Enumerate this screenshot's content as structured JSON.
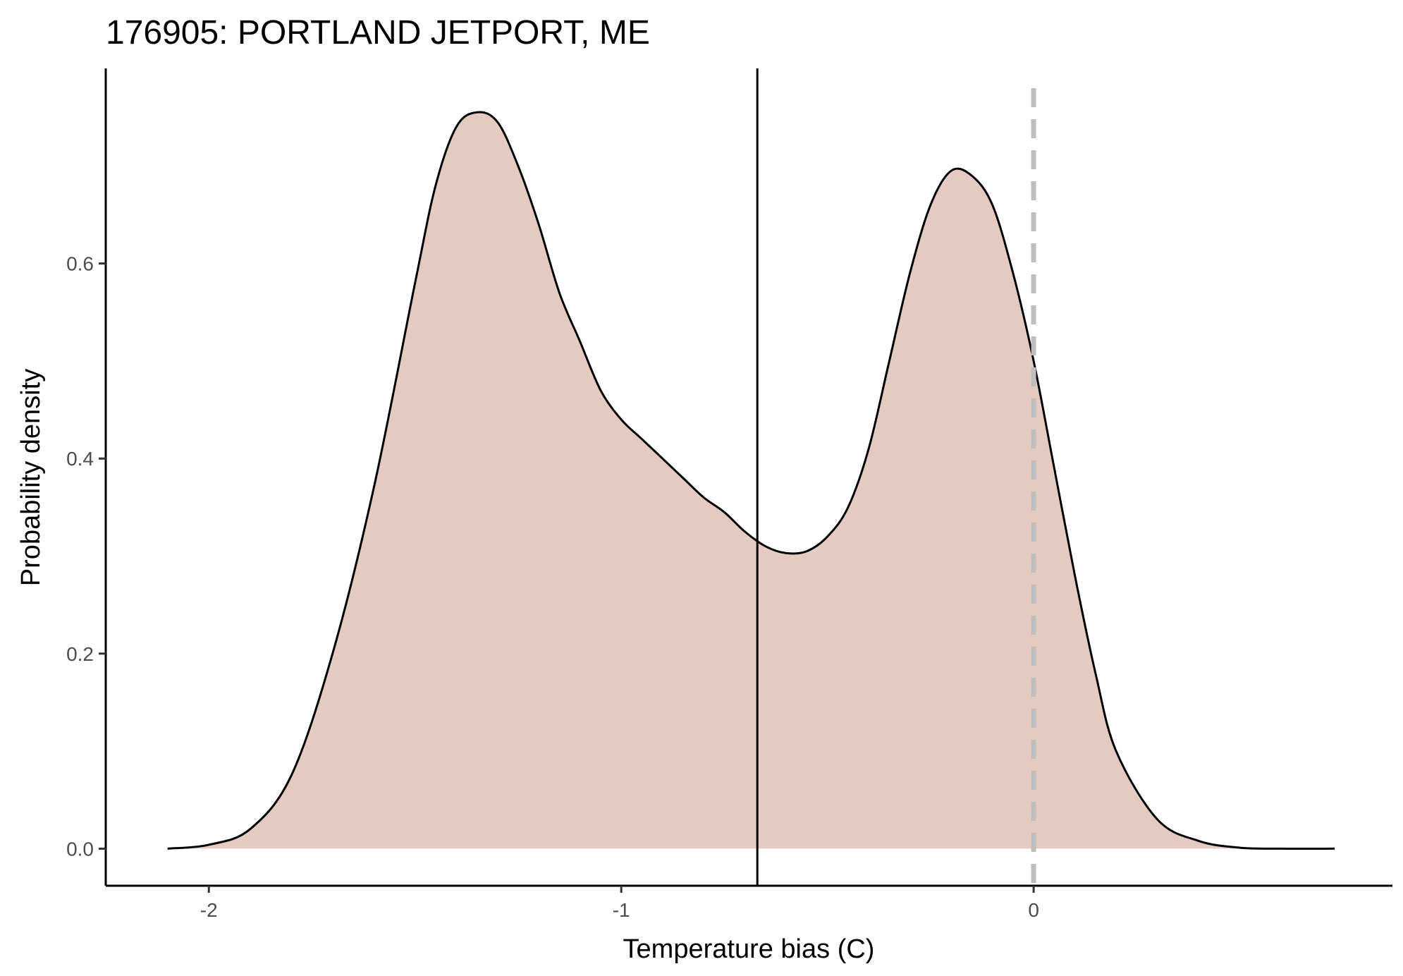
{
  "chart_data": {
    "type": "area",
    "title": "176905: PORTLAND JETPORT, ME",
    "xlabel": "Temperature bias (C)",
    "ylabel": "Probability density",
    "xlim": [
      -2.25,
      0.87
    ],
    "ylim": [
      -0.038,
      0.8
    ],
    "x_ticks": [
      -2,
      -1,
      0
    ],
    "x_tick_labels": [
      "-2",
      "-1",
      "0"
    ],
    "y_ticks": [
      0.0,
      0.2,
      0.4,
      0.6
    ],
    "y_tick_labels": [
      "0.0",
      "0.2",
      "0.4",
      "0.6"
    ],
    "grid": false,
    "legend": "none",
    "fill_color": "#e5cac2",
    "line_color": "#000000",
    "series": [
      {
        "x": [
          -2.1,
          -2.0,
          -1.9,
          -1.8,
          -1.7,
          -1.6,
          -1.5,
          -1.45,
          -1.4,
          -1.35,
          -1.3,
          -1.25,
          -1.2,
          -1.15,
          -1.1,
          -1.05,
          -1.0,
          -0.95,
          -0.9,
          -0.85,
          -0.8,
          -0.75,
          -0.7,
          -0.65,
          -0.6,
          -0.55,
          -0.5,
          -0.45,
          -0.4,
          -0.35,
          -0.3,
          -0.25,
          -0.2,
          -0.15,
          -0.1,
          -0.05,
          0.0,
          0.05,
          0.1,
          0.15,
          0.2,
          0.3,
          0.4,
          0.5,
          0.6,
          0.73
        ],
        "values": [
          0.0,
          0.004,
          0.02,
          0.075,
          0.2,
          0.37,
          0.58,
          0.68,
          0.74,
          0.755,
          0.745,
          0.7,
          0.64,
          0.57,
          0.52,
          0.47,
          0.44,
          0.42,
          0.4,
          0.38,
          0.36,
          0.345,
          0.325,
          0.31,
          0.303,
          0.305,
          0.32,
          0.35,
          0.41,
          0.5,
          0.59,
          0.66,
          0.695,
          0.69,
          0.66,
          0.59,
          0.5,
          0.39,
          0.28,
          0.18,
          0.1,
          0.03,
          0.008,
          0.001,
          0.0,
          0.0
        ]
      }
    ],
    "vlines": [
      {
        "x": -0.67,
        "style": "solid",
        "color": "#000000"
      },
      {
        "x": 0.0,
        "style": "dashed",
        "color": "#bebebe"
      }
    ]
  }
}
